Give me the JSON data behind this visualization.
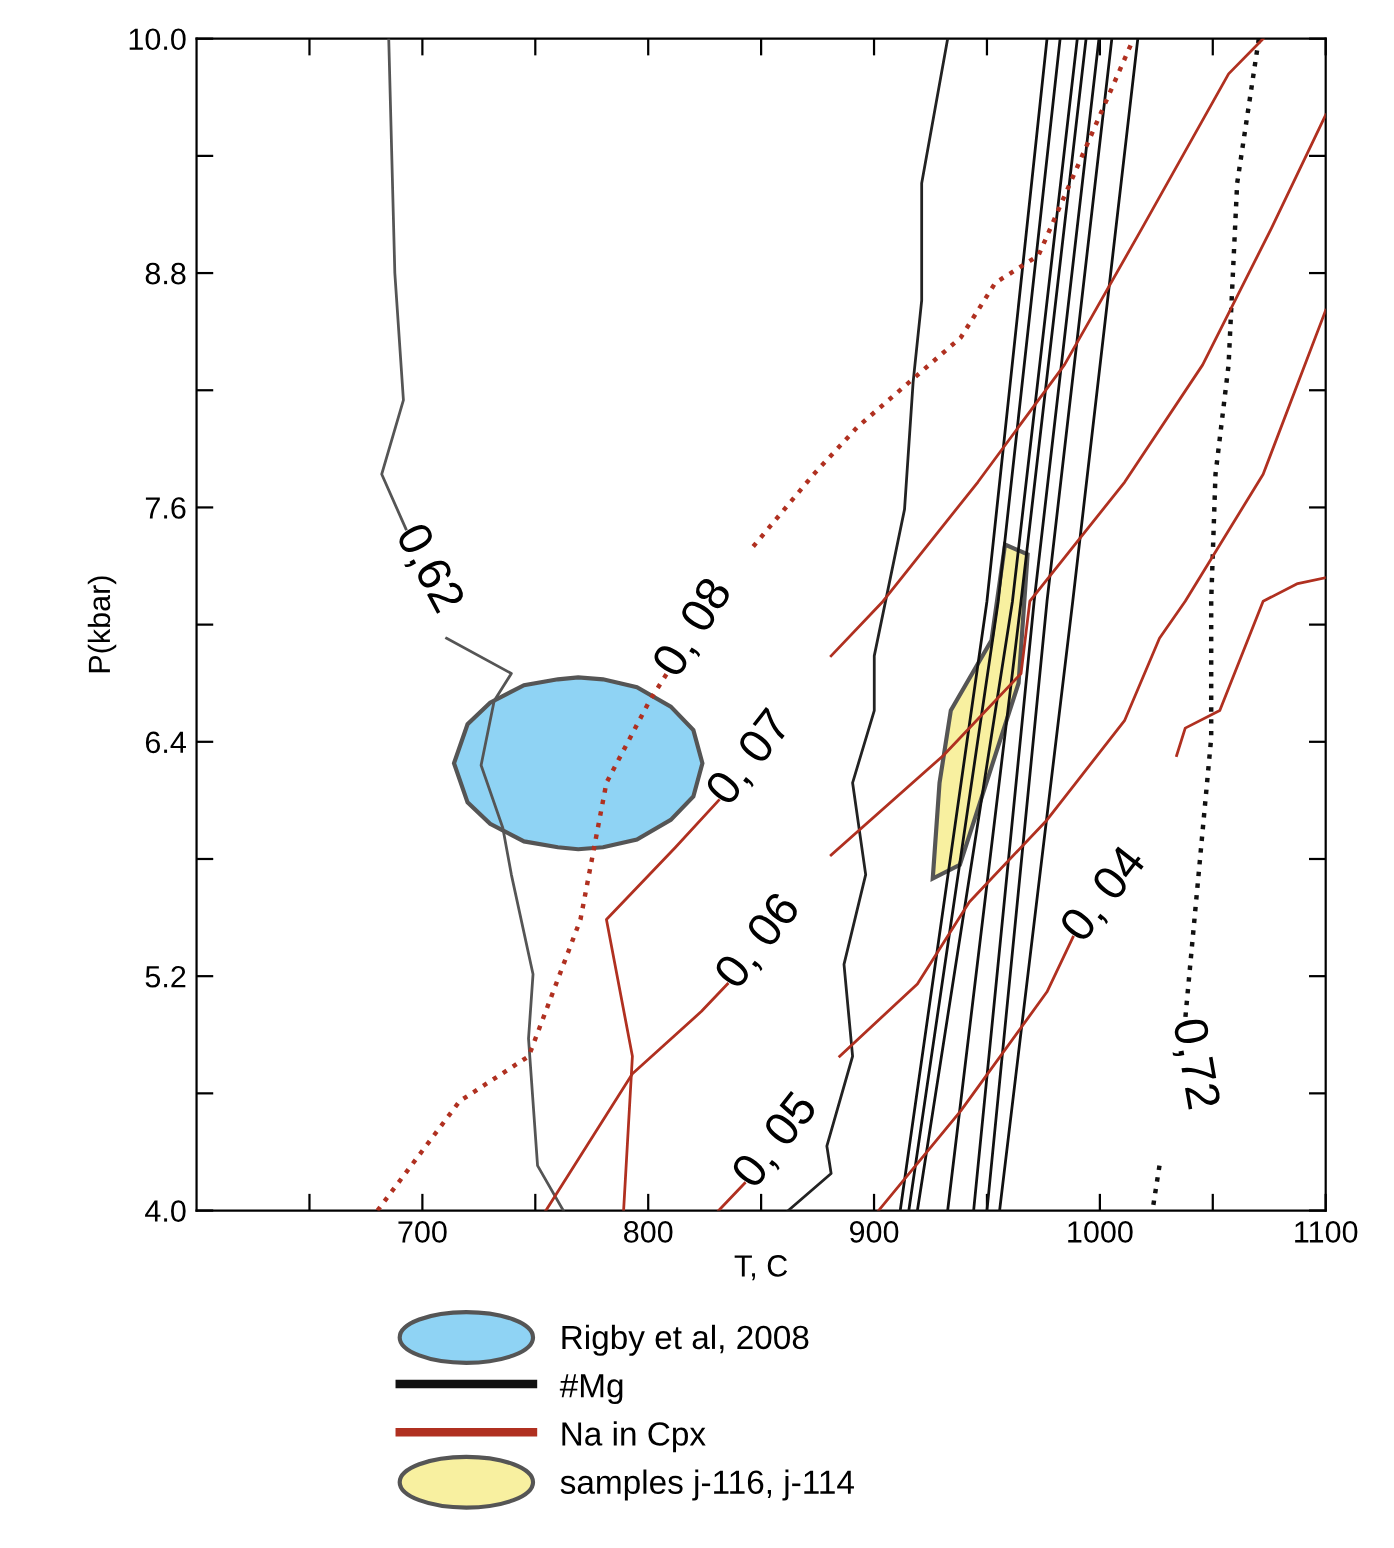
{
  "chart_data": {
    "type": "line",
    "xlabel": "T, C",
    "ylabel": "P(kbar)",
    "xlim": [
      600,
      1100
    ],
    "ylim": [
      4,
      10
    ],
    "xticks": [
      {
        "value": 650,
        "label": null
      },
      700,
      {
        "value": 750,
        "label": null
      },
      800,
      {
        "value": 850,
        "label": null
      },
      900,
      {
        "value": 950,
        "label": null
      },
      1000,
      {
        "value": 1050,
        "label": null
      },
      1100
    ],
    "yticks": [
      {
        "value": 4,
        "label": "4.0"
      },
      {
        "value": 4.6,
        "label": null
      },
      {
        "value": 5.2,
        "label": "5.2"
      },
      {
        "value": 5.8,
        "label": null
      },
      {
        "value": 6.4,
        "label": "6.4"
      },
      {
        "value": 7.0,
        "label": null
      },
      {
        "value": 7.6,
        "label": "7.6"
      },
      {
        "value": 8.2,
        "label": null
      },
      {
        "value": 8.8,
        "label": "8.8"
      },
      {
        "value": 9.4,
        "label": null
      },
      {
        "value": 10,
        "label": "10.0"
      }
    ],
    "grid": false,
    "legend": "bottom",
    "marker": "none",
    "series": [
      {
        "name": "Rigby et al, 2008",
        "type": "area",
        "color": "#8fd3f4",
        "x": [
          714,
          720,
          730,
          745,
          760,
          769,
          780,
          795,
          810,
          820,
          824,
          820,
          810,
          795,
          780,
          769,
          760,
          745,
          730,
          720,
          714
        ],
        "values": [
          6.29,
          6.49,
          6.6,
          6.69,
          6.72,
          6.73,
          6.72,
          6.68,
          6.58,
          6.46,
          6.29,
          6.12,
          6.0,
          5.9,
          5.86,
          5.85,
          5.86,
          5.89,
          5.98,
          6.09,
          6.29
        ]
      },
      {
        "name": "#Mg",
        "color": "#111111",
        "x": [
          911.6,
          950,
          976.6
        ],
        "values": [
          4.0,
          7.12,
          10.0
        ]
      },
      {
        "color": "#111111",
        "x": [
          915.4,
          955,
          982.4
        ],
        "values": [
          4.0,
          7.12,
          10.0
        ]
      },
      {
        "color": "#111111",
        "x": [
          919.2,
          961.3,
          990.0
        ],
        "values": [
          4.0,
          7.12,
          10.0
        ]
      },
      {
        "color": "#111111",
        "x": [
          932.6,
          965.1,
          993.9
        ],
        "values": [
          4.0,
          7.12,
          10.0
        ]
      },
      {
        "color": "#111111",
        "x": [
          944.1,
          970.9,
          999.6
        ],
        "values": [
          4.0,
          7.12,
          10.0
        ]
      },
      {
        "color": "#111111",
        "x": [
          950.0,
          976.6,
          1005.3
        ],
        "values": [
          4.0,
          7.12,
          10.0
        ]
      },
      {
        "color": "#111111",
        "x": [
          955.6,
          988.0,
          1016.8
        ],
        "values": [
          4.0,
          7.12,
          10.0
        ]
      },
      {
        "color": "#555555",
        "x": [
          685.1,
          687.8,
          691.6,
          682,
          692.7,
          null,
          710.7,
          739.4,
          731.8,
          726,
          735.6,
          739.4,
          749,
          747,
          751,
          762.4
        ],
        "values": [
          10.0,
          8.8,
          8.15,
          7.77,
          7.49,
          null,
          6.93,
          6.75,
          6.61,
          6.28,
          5.96,
          5.72,
          5.21,
          4.88,
          4.23,
          4.0
        ]
      },
      {
        "color": "#222222",
        "x": [
          932.6,
          921.1,
          921.1,
          917.3,
          913.5,
          900.1,
          900.1,
          890.5,
          896.3,
          886.7,
          890.5,
          879.1,
          881,
          862
        ],
        "values": [
          10.0,
          9.26,
          8.66,
          8.24,
          7.59,
          6.84,
          6.56,
          6.19,
          5.72,
          5.26,
          4.79,
          4.33,
          4.19,
          4.0
        ]
      },
      {
        "color": "#111111",
        "line_style": "dotted",
        "x": [
          1070.4,
          1060.8,
          1057,
          1051.2,
          1049.3,
          1049.3,
          1037.8,
          null,
          1026.4,
          1023.3
        ],
        "values": [
          10.0,
          9.26,
          8.33,
          7.77,
          7.12,
          6.42,
          4.98,
          null,
          4.23,
          4.0
        ]
      },
      {
        "name": "Na in Cpx",
        "color": "#b03020",
        "x": [
          789.1,
          793,
          781.5,
          812.1,
          831.2,
          null,
          881,
          904,
          946,
          984.3,
          1018.7,
          1057,
          1072.3
        ],
        "values": [
          4.0,
          4.79,
          5.49,
          5.86,
          6.1,
          null,
          6.84,
          7.12,
          7.73,
          8.33,
          9.03,
          9.82,
          10.0
        ]
      },
      {
        "color": "#b03020",
        "line_style": "dotted",
        "x": [
          680.1,
          716.5,
          747.1,
          770.0,
          781.5,
          800.6,
          808.3,
          null,
          846.5,
          873.3,
          892.5,
          938.4,
          953.7,
          972.8,
          1014.9
        ],
        "values": [
          4.0,
          4.56,
          4.79,
          5.49,
          6.19,
          6.61,
          6.75,
          null,
          7.4,
          7.77,
          8.01,
          8.47,
          8.75,
          8.89,
          10.0
        ]
      },
      {
        "color": "#b03020",
        "x": [
          754.7,
          793,
          823.6,
          835.1,
          null,
          881,
          930.7,
          965.1,
          969,
          1011,
          1045.5,
          1076,
          1100
        ],
        "values": [
          4.0,
          4.7,
          5.02,
          5.16,
          null,
          5.82,
          6.33,
          6.75,
          7.12,
          7.73,
          8.33,
          9.03,
          9.61
        ]
      },
      {
        "color": "#b03020",
        "x": [
          831.2,
          842.7,
          null,
          884.8,
          919.2,
          942.2,
          976.6,
          1011,
          1026.4,
          1037.8,
          1072.3,
          1100
        ],
        "values": [
          4.0,
          4.14,
          null,
          4.79,
          5.16,
          5.58,
          6.0,
          6.51,
          6.93,
          7.12,
          7.77,
          8.61
        ]
      },
      {
        "color": "#b03020",
        "x": [
          902,
          938.4,
          976.6,
          988.1,
          null,
          1034,
          1037.8,
          1053.1,
          1072.3,
          1087.6,
          1100
        ],
        "values": [
          4.0,
          4.51,
          5.12,
          5.4,
          null,
          6.33,
          6.47,
          6.56,
          7.12,
          7.21,
          7.24
        ]
      },
      {
        "name": "samples j-116, j-114",
        "type": "area",
        "color": "#f8f0a0",
        "x": [
          926,
          929,
          934,
          952,
          958,
          968,
          964,
          938,
          926
        ],
        "values": [
          5.7,
          6.19,
          6.56,
          6.92,
          7.41,
          7.36,
          6.7,
          5.77,
          5.7
        ]
      }
    ],
    "annotations": [
      {
        "text": "0,62",
        "x": 692.7,
        "y": 7.49
      },
      {
        "text": "0, 08",
        "x": 808.3,
        "y": 6.75
      },
      {
        "text": "0, 07",
        "x": 831.2,
        "y": 6.1
      },
      {
        "text": "0, 06",
        "x": 835.1,
        "y": 5.16
      },
      {
        "text": "0, 05",
        "x": 842.7,
        "y": 4.14
      },
      {
        "text": "0, 04",
        "x": 988.1,
        "y": 5.4
      },
      {
        "text": "0,72",
        "x": 1037.8,
        "y": 4.98
      }
    ]
  }
}
